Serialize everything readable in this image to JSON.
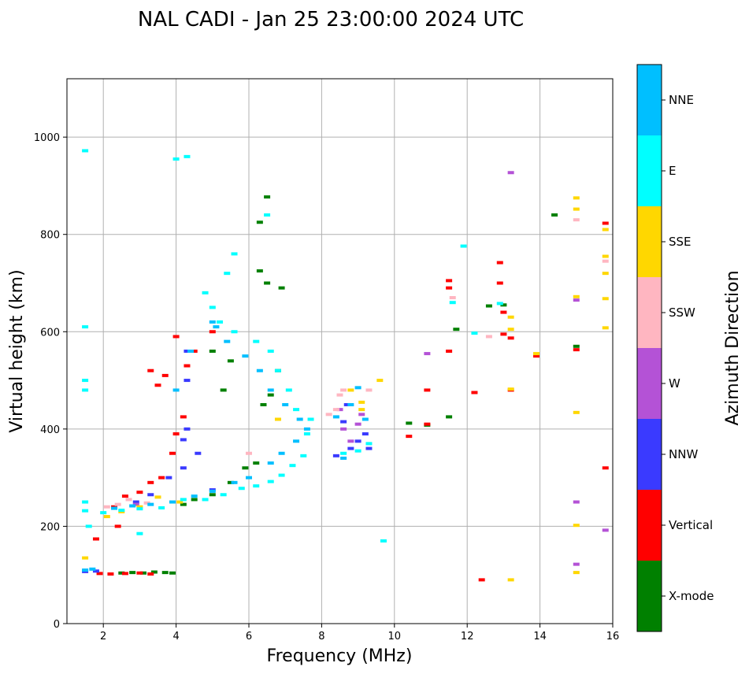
{
  "chart_data": {
    "type": "scatter",
    "title": "NAL CADI - Jan 25 23:00:00 2024 UTC",
    "xlabel": "Frequency (MHz)",
    "ylabel": "Virtual height (km)",
    "xlim": [
      1,
      16
    ],
    "ylim": [
      0,
      1120
    ],
    "xticks": [
      2,
      4,
      6,
      8,
      10,
      12,
      14,
      16
    ],
    "yticks": [
      0,
      200,
      400,
      600,
      800,
      1000
    ],
    "grid": true,
    "colorbar": {
      "label": "Azimuth Direction",
      "categories": [
        {
          "name": "X-mode",
          "color": "#008000"
        },
        {
          "name": "Vertical",
          "color": "#ff0000"
        },
        {
          "name": "NNW",
          "color": "#3a3aff"
        },
        {
          "name": "W",
          "color": "#b452d6"
        },
        {
          "name": "SSW",
          "color": "#ffb6c1"
        },
        {
          "name": "SSE",
          "color": "#ffd700"
        },
        {
          "name": "E",
          "color": "#00ffff"
        },
        {
          "name": "NNE",
          "color": "#00bfff"
        }
      ]
    },
    "series": [
      {
        "name": "X-mode",
        "points": [
          [
            2.5,
            104
          ],
          [
            2.8,
            105
          ],
          [
            3.1,
            104
          ],
          [
            3.4,
            106
          ],
          [
            3.7,
            105
          ],
          [
            3.9,
            104
          ],
          [
            4.2,
            245
          ],
          [
            4.5,
            255
          ],
          [
            5.0,
            265
          ],
          [
            5.5,
            290
          ],
          [
            5.9,
            320
          ],
          [
            6.2,
            330
          ],
          [
            6.4,
            450
          ],
          [
            6.6,
            470
          ],
          [
            6.8,
            520
          ],
          [
            6.5,
            700
          ],
          [
            6.9,
            690
          ],
          [
            5.5,
            540
          ],
          [
            5.3,
            480
          ],
          [
            5.0,
            560
          ],
          [
            6.3,
            725
          ],
          [
            6.5,
            877
          ],
          [
            6.3,
            825
          ],
          [
            10.4,
            412
          ],
          [
            10.9,
            408
          ],
          [
            11.5,
            425
          ],
          [
            12.6,
            653
          ],
          [
            13.0,
            655
          ],
          [
            14.4,
            840
          ],
          [
            15.0,
            570
          ],
          [
            11.7,
            605
          ]
        ]
      },
      {
        "name": "Vertical",
        "points": [
          [
            1.9,
            103
          ],
          [
            2.2,
            102
          ],
          [
            2.6,
            103
          ],
          [
            3.0,
            104
          ],
          [
            3.3,
            102
          ],
          [
            2.3,
            240
          ],
          [
            2.6,
            262
          ],
          [
            3.0,
            270
          ],
          [
            3.3,
            290
          ],
          [
            3.6,
            300
          ],
          [
            3.9,
            350
          ],
          [
            4.0,
            390
          ],
          [
            4.2,
            425
          ],
          [
            4.3,
            530
          ],
          [
            3.7,
            510
          ],
          [
            3.3,
            520
          ],
          [
            4.0,
            590
          ],
          [
            4.5,
            560
          ],
          [
            5.0,
            600
          ],
          [
            3.5,
            490
          ],
          [
            12.9,
            742
          ],
          [
            12.9,
            700
          ],
          [
            13.0,
            640
          ],
          [
            13.0,
            595
          ],
          [
            13.2,
            587
          ],
          [
            13.2,
            480
          ],
          [
            11.5,
            705
          ],
          [
            11.5,
            690
          ],
          [
            11.5,
            560
          ],
          [
            10.9,
            410
          ],
          [
            10.4,
            385
          ],
          [
            10.9,
            480
          ],
          [
            12.2,
            475
          ],
          [
            12.4,
            90
          ],
          [
            13.9,
            550
          ],
          [
            15.0,
            563
          ],
          [
            15.8,
            823
          ],
          [
            15.8,
            320
          ],
          [
            2.4,
            200
          ],
          [
            1.8,
            174
          ]
        ]
      },
      {
        "name": "NNW",
        "points": [
          [
            1.5,
            107
          ],
          [
            1.8,
            108
          ],
          [
            2.9,
            250
          ],
          [
            3.3,
            265
          ],
          [
            3.8,
            300
          ],
          [
            4.2,
            320
          ],
          [
            4.6,
            350
          ],
          [
            4.2,
            378
          ],
          [
            4.3,
            400
          ],
          [
            5.0,
            275
          ],
          [
            8.4,
            345
          ],
          [
            8.8,
            360
          ],
          [
            9.0,
            375
          ],
          [
            9.2,
            390
          ],
          [
            8.6,
            415
          ],
          [
            8.7,
            450
          ],
          [
            9.3,
            360
          ],
          [
            4.3,
            500
          ],
          [
            4.3,
            560
          ]
        ]
      },
      {
        "name": "W",
        "points": [
          [
            8.6,
            400
          ],
          [
            8.8,
            375
          ],
          [
            8.5,
            440
          ],
          [
            9.1,
            430
          ],
          [
            9.0,
            410
          ],
          [
            15.0,
            250
          ],
          [
            15.0,
            122
          ],
          [
            15.8,
            192
          ],
          [
            15.0,
            665
          ],
          [
            13.2,
            927
          ],
          [
            10.9,
            555
          ],
          [
            2.9,
            245
          ]
        ]
      },
      {
        "name": "SSW",
        "points": [
          [
            2.1,
            240
          ],
          [
            2.4,
            245
          ],
          [
            2.7,
            255
          ],
          [
            3.2,
            248
          ],
          [
            8.2,
            430
          ],
          [
            8.4,
            440
          ],
          [
            8.5,
            470
          ],
          [
            8.6,
            480
          ],
          [
            9.3,
            480
          ],
          [
            12.6,
            590
          ],
          [
            15.0,
            830
          ],
          [
            11.6,
            670
          ],
          [
            15.8,
            745
          ],
          [
            6.0,
            350
          ]
        ]
      },
      {
        "name": "SSE",
        "points": [
          [
            1.5,
            135
          ],
          [
            2.1,
            220
          ],
          [
            2.5,
            230
          ],
          [
            3.0,
            240
          ],
          [
            3.5,
            260
          ],
          [
            4.1,
            250
          ],
          [
            8.8,
            480
          ],
          [
            9.1,
            455
          ],
          [
            9.1,
            440
          ],
          [
            13.2,
            630
          ],
          [
            13.2,
            605
          ],
          [
            13.2,
            482
          ],
          [
            15.0,
            875
          ],
          [
            15.0,
            852
          ],
          [
            15.0,
            672
          ],
          [
            15.0,
            434
          ],
          [
            15.0,
            202
          ],
          [
            15.0,
            105
          ],
          [
            15.8,
            755
          ],
          [
            15.8,
            720
          ],
          [
            15.8,
            668
          ],
          [
            15.8,
            608
          ],
          [
            15.8,
            810
          ],
          [
            13.9,
            555
          ],
          [
            13.2,
            90
          ],
          [
            9.6,
            500
          ],
          [
            6.8,
            420
          ]
        ]
      },
      {
        "name": "E",
        "points": [
          [
            1.5,
            250
          ],
          [
            1.5,
            232
          ],
          [
            1.6,
            200
          ],
          [
            2.0,
            228
          ],
          [
            2.5,
            233
          ],
          [
            3.0,
            236
          ],
          [
            3.6,
            238
          ],
          [
            4.2,
            255
          ],
          [
            4.8,
            255
          ],
          [
            5.3,
            265
          ],
          [
            5.8,
            278
          ],
          [
            6.2,
            283
          ],
          [
            6.6,
            292
          ],
          [
            6.9,
            305
          ],
          [
            7.2,
            325
          ],
          [
            7.5,
            345
          ],
          [
            7.6,
            390
          ],
          [
            7.7,
            420
          ],
          [
            7.3,
            440
          ],
          [
            7.1,
            480
          ],
          [
            6.8,
            520
          ],
          [
            6.6,
            560
          ],
          [
            6.2,
            580
          ],
          [
            5.6,
            600
          ],
          [
            5.2,
            620
          ],
          [
            5.0,
            650
          ],
          [
            4.8,
            680
          ],
          [
            5.4,
            720
          ],
          [
            5.6,
            760
          ],
          [
            4.3,
            960
          ],
          [
            4.0,
            955
          ],
          [
            1.5,
            972
          ],
          [
            1.5,
            610
          ],
          [
            1.5,
            500
          ],
          [
            1.5,
            480
          ],
          [
            8.6,
            350
          ],
          [
            9.0,
            355
          ],
          [
            9.3,
            370
          ],
          [
            9.7,
            170
          ],
          [
            3.0,
            185
          ],
          [
            6.5,
            840
          ],
          [
            12.2,
            597
          ],
          [
            11.9,
            776
          ],
          [
            12.9,
            658
          ],
          [
            11.6,
            660
          ]
        ]
      },
      {
        "name": "NNE",
        "points": [
          [
            1.5,
            110
          ],
          [
            1.7,
            112
          ],
          [
            2.3,
            237
          ],
          [
            2.8,
            242
          ],
          [
            3.3,
            245
          ],
          [
            3.9,
            250
          ],
          [
            4.5,
            262
          ],
          [
            5.0,
            272
          ],
          [
            5.6,
            290
          ],
          [
            6.0,
            300
          ],
          [
            6.6,
            330
          ],
          [
            6.9,
            350
          ],
          [
            7.3,
            375
          ],
          [
            7.6,
            400
          ],
          [
            7.4,
            420
          ],
          [
            7.0,
            450
          ],
          [
            6.6,
            480
          ],
          [
            6.3,
            520
          ],
          [
            5.9,
            550
          ],
          [
            5.4,
            580
          ],
          [
            5.1,
            610
          ],
          [
            5.0,
            620
          ],
          [
            4.4,
            560
          ],
          [
            4.0,
            480
          ],
          [
            8.4,
            425
          ],
          [
            8.8,
            450
          ],
          [
            9.2,
            420
          ],
          [
            8.6,
            340
          ],
          [
            9.0,
            485
          ]
        ]
      }
    ]
  }
}
